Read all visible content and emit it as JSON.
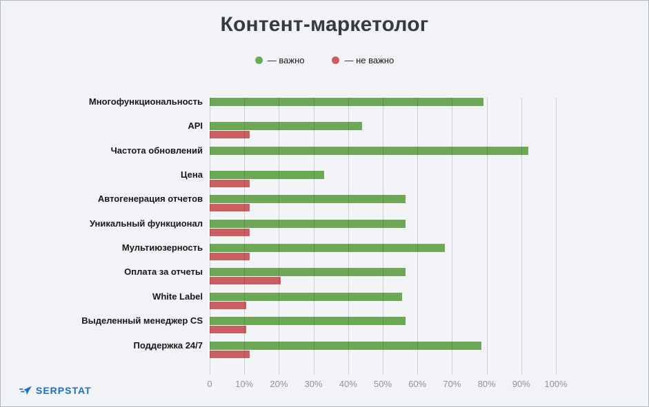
{
  "title": "Контент-маркетолог",
  "legend": {
    "items": [
      {
        "text": "— важно",
        "color": "#6da857"
      },
      {
        "text": "— не важно",
        "color": "#cb5e61"
      }
    ]
  },
  "chart_data": {
    "type": "bar",
    "orientation": "horizontal",
    "title": "Контент-маркетолог",
    "categories": [
      "Многофункциональность",
      "API",
      "Частота обновлений",
      "Цена",
      "Автогенерация отчетов",
      "Уникальный функционал",
      "Мультиюзерность",
      "Оплата  за отчеты",
      "White Label",
      "Выделенный менеджер CS",
      "Поддержка 24/7"
    ],
    "series": [
      {
        "name": "важно",
        "color": "#6da857",
        "values": [
          79,
          44,
          92,
          33,
          56.5,
          56.5,
          68,
          56.5,
          55.5,
          56.5,
          78.5
        ]
      },
      {
        "name": "не важно",
        "color": "#cb5e61",
        "values": [
          null,
          11.5,
          null,
          11.5,
          11.5,
          11.5,
          11.5,
          20.5,
          10.5,
          10.5,
          11.5
        ]
      }
    ],
    "xlim": [
      0,
      100
    ],
    "x_ticks": [
      "0",
      "10%",
      "20%",
      "30%",
      "40%",
      "50%",
      "60%",
      "70%",
      "80%",
      "90%",
      "100%"
    ],
    "grid": true,
    "legend_position": "top"
  },
  "footer": {
    "brand": "SERPSTAT",
    "brand_color": "#1b6fc4"
  }
}
